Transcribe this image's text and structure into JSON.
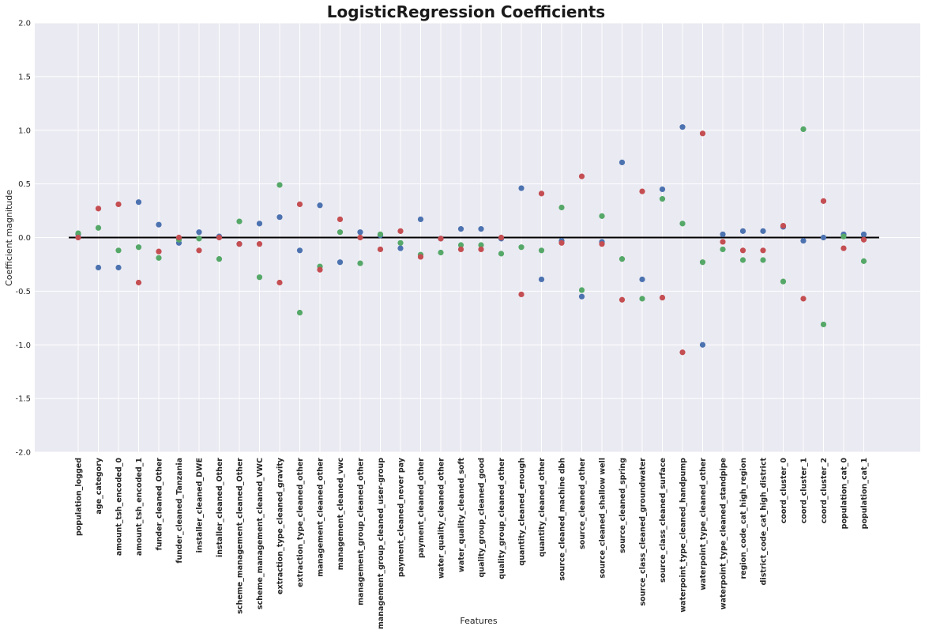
{
  "chart_data": {
    "type": "scatter",
    "title": "LogisticRegression Coefficients",
    "xlabel": "Features",
    "ylabel": "Coefficient magnitude",
    "ylim": [
      -2.0,
      2.0
    ],
    "yticks": [
      "2.0",
      "1.5",
      "1.0",
      "0.5",
      "0.0",
      "-0.5",
      "-1.0",
      "-1.5",
      "-2.0"
    ],
    "ytick_values": [
      2.0,
      1.5,
      1.0,
      0.5,
      0.0,
      -0.5,
      -1.0,
      -1.5,
      -2.0
    ],
    "grid": true,
    "zero_line": 0.0,
    "categories": [
      "population_logged",
      "age_category",
      "amount_tsh_encoded_0",
      "amount_tsh_encoded_1",
      "funder_cleaned_Other",
      "funder_cleaned_Tanzania",
      "installer_cleaned_DWE",
      "installer_cleaned_Other",
      "scheme_management_cleaned_Other",
      "scheme_management_cleaned_VWC",
      "extraction_type_cleaned_gravity",
      "extraction_type_cleaned_other",
      "management_cleaned_other",
      "management_cleaned_vwc",
      "management_group_cleaned_other",
      "management_group_cleaned_user-group",
      "payment_cleaned_never pay",
      "payment_cleaned_other",
      "water_quality_cleaned_other",
      "water_quality_cleaned_soft",
      "quality_group_cleaned_good",
      "quality_group_cleaned_other",
      "quantity_cleaned_enough",
      "quantity_cleaned_other",
      "source_cleaned_machine dbh",
      "source_cleaned_other",
      "source_cleaned_shallow well",
      "source_cleaned_spring",
      "source_class_cleaned_groundwater",
      "source_class_cleaned_surface",
      "waterpoint_type_cleaned_handpump",
      "waterpoint_type_cleaned_other",
      "waterpoint_type_cleaned_standpipe",
      "region_code_cat_high_region",
      "district_code_cat_high_district",
      "coord_cluster_0",
      "coord_cluster_1",
      "coord_cluster_2",
      "population_cat_0",
      "population_cat_1"
    ],
    "series": [
      {
        "color": "#4c72b0",
        "values": [
          0.03,
          -0.28,
          -0.28,
          0.33,
          0.12,
          -0.05,
          0.05,
          0.01,
          -0.06,
          0.13,
          0.19,
          -0.12,
          0.3,
          -0.23,
          0.05,
          0.02,
          -0.1,
          0.17,
          -0.01,
          0.08,
          0.08,
          -0.01,
          0.46,
          -0.39,
          -0.03,
          -0.55,
          -0.04,
          0.7,
          -0.39,
          0.45,
          1.03,
          -1.0,
          0.03,
          0.06,
          0.06,
          0.1,
          -0.03,
          0.0,
          0.03,
          0.03
        ]
      },
      {
        "color": "#55a868",
        "values": [
          0.04,
          0.09,
          -0.12,
          -0.09,
          -0.19,
          -0.02,
          -0.01,
          -0.2,
          0.15,
          -0.37,
          0.49,
          -0.7,
          -0.27,
          0.05,
          -0.24,
          0.03,
          -0.05,
          -0.16,
          -0.14,
          -0.07,
          -0.07,
          -0.15,
          -0.09,
          -0.12,
          0.28,
          -0.49,
          0.2,
          -0.2,
          -0.57,
          0.36,
          0.13,
          -0.23,
          -0.11,
          -0.21,
          -0.21,
          -0.41,
          1.01,
          -0.81,
          0.01,
          -0.22
        ]
      },
      {
        "color": "#c44e52",
        "values": [
          0.0,
          0.27,
          0.31,
          -0.42,
          -0.13,
          0.0,
          -0.12,
          0.0,
          -0.06,
          -0.06,
          -0.42,
          0.31,
          -0.3,
          0.17,
          0.0,
          -0.11,
          0.06,
          -0.18,
          -0.01,
          -0.11,
          -0.11,
          0.0,
          -0.53,
          0.41,
          -0.05,
          0.57,
          -0.06,
          -0.58,
          0.43,
          -0.56,
          -1.07,
          0.97,
          -0.04,
          -0.12,
          -0.12,
          0.11,
          -0.57,
          0.34,
          -0.1,
          -0.02
        ]
      }
    ]
  }
}
